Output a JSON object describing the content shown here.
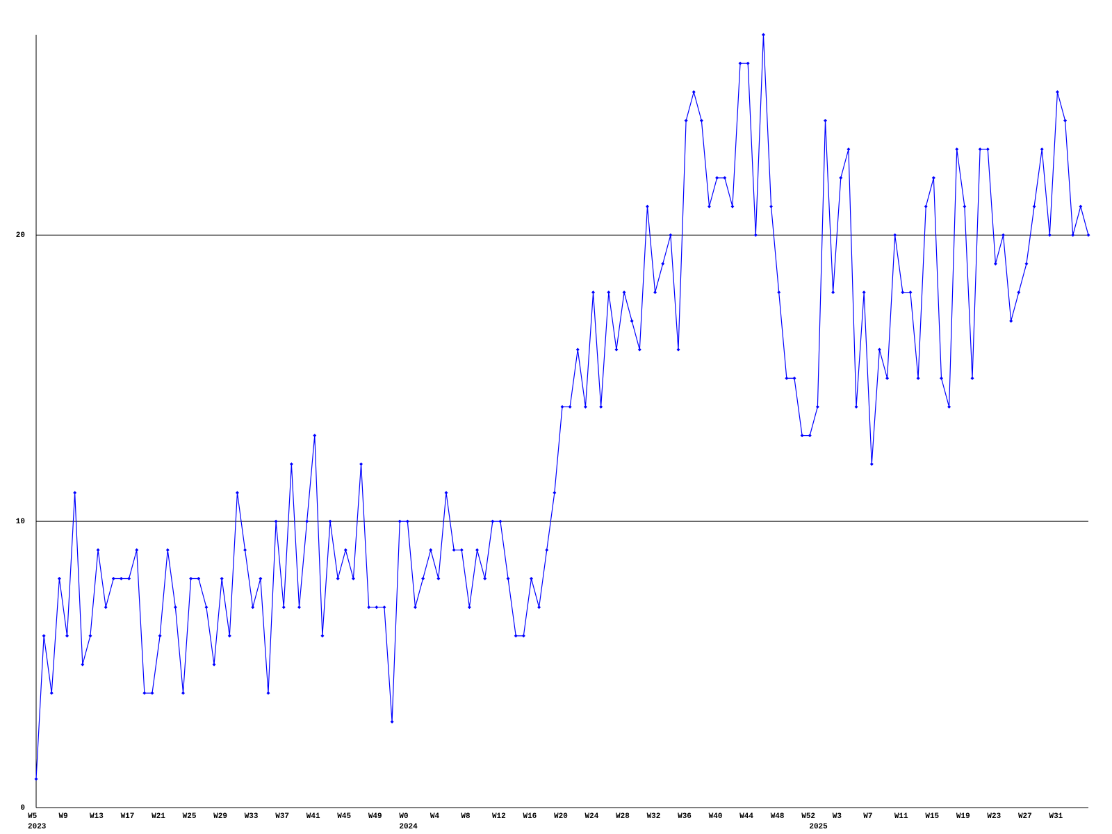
{
  "chart_data": {
    "type": "line",
    "categories": [
      "W5",
      null,
      null,
      null,
      "W9",
      null,
      null,
      null,
      "W13",
      null,
      null,
      null,
      "W17",
      null,
      null,
      null,
      "W21",
      null,
      null,
      null,
      "W25",
      null,
      null,
      null,
      "W29",
      null,
      null,
      null,
      "W33",
      null,
      null,
      null,
      "W37",
      null,
      null,
      null,
      "W41",
      null,
      null,
      null,
      "W45",
      null,
      null,
      null,
      "W49",
      null,
      null,
      null,
      "W0",
      null,
      null,
      null,
      "W4",
      null,
      null,
      null,
      "W8",
      null,
      null,
      null,
      "W12",
      null,
      null,
      null,
      "W16",
      null,
      null,
      null,
      "W20",
      null,
      null,
      null,
      "W24",
      null,
      null,
      null,
      "W28",
      null,
      null,
      null,
      "W32",
      null,
      null,
      null,
      "W36",
      null,
      null,
      null,
      "W40",
      null,
      null,
      null,
      "W44",
      null,
      null,
      null,
      "W48",
      null,
      null,
      null,
      "W52",
      null,
      null,
      null,
      "W3",
      null,
      null,
      null,
      "W7",
      null,
      null,
      null,
      "W11",
      null,
      null,
      null,
      "W15",
      null,
      null,
      null,
      "W19",
      null,
      null,
      null,
      "W23",
      null,
      null,
      null,
      "W27",
      null,
      null,
      null,
      "W31",
      null,
      null,
      null,
      null
    ],
    "year_labels": [
      "2023",
      null,
      null,
      null,
      null,
      null,
      null,
      null,
      null,
      null,
      null,
      null,
      null,
      null,
      null,
      null,
      null,
      null,
      null,
      null,
      null,
      null,
      null,
      null,
      null,
      null,
      null,
      null,
      null,
      null,
      null,
      null,
      null,
      null,
      null,
      null,
      null,
      null,
      null,
      null,
      null,
      null,
      null,
      null,
      null,
      null,
      null,
      null,
      "2024",
      null,
      null,
      null,
      null,
      null,
      null,
      null,
      null,
      null,
      null,
      null,
      null,
      null,
      null,
      null,
      null,
      null,
      null,
      null,
      null,
      null,
      null,
      null,
      null,
      null,
      null,
      null,
      null,
      null,
      null,
      null,
      null,
      null,
      null,
      null,
      null,
      null,
      null,
      null,
      null,
      null,
      null,
      null,
      null,
      null,
      null,
      null,
      null,
      null,
      null,
      null,
      null,
      "2025",
      null,
      null,
      null,
      null,
      null,
      null,
      null,
      null,
      null,
      null,
      null,
      null,
      null,
      null,
      null,
      null,
      null,
      null,
      null,
      null,
      null,
      null,
      null,
      null,
      null,
      null,
      null,
      null,
      null,
      null,
      null,
      null,
      null,
      null,
      null
    ],
    "series": [
      {
        "color": "#0000ff",
        "values": [
          1,
          6,
          4,
          8,
          6,
          11,
          5,
          6,
          9,
          7,
          8,
          8,
          8,
          9,
          4,
          4,
          6,
          9,
          7,
          4,
          8,
          8,
          7,
          5,
          8,
          6,
          11,
          9,
          7,
          8,
          4,
          10,
          7,
          12,
          7,
          10,
          13,
          6,
          10,
          8,
          9,
          8,
          12,
          7,
          7,
          7,
          3,
          10,
          10,
          7,
          8,
          9,
          8,
          11,
          9,
          9,
          7,
          9,
          8,
          10,
          10,
          8,
          6,
          6,
          8,
          7,
          9,
          11,
          14,
          14,
          16,
          14,
          18,
          14,
          18,
          16,
          18,
          17,
          16,
          21,
          18,
          19,
          20,
          16,
          24,
          25,
          24,
          21,
          22,
          22,
          21,
          26,
          26,
          20,
          27,
          21,
          18,
          15,
          15,
          13,
          13,
          14,
          24,
          18,
          22,
          23,
          14,
          18,
          12,
          16,
          15,
          20,
          18,
          18,
          15,
          21,
          22,
          15,
          14,
          23,
          21,
          15,
          23,
          23,
          19,
          20,
          17,
          18,
          19,
          21,
          23,
          20,
          25,
          24,
          20,
          21,
          20
        ]
      }
    ],
    "ylim": [
      0,
      27
    ],
    "yticks": [
      0,
      10,
      20
    ],
    "grid": true
  }
}
